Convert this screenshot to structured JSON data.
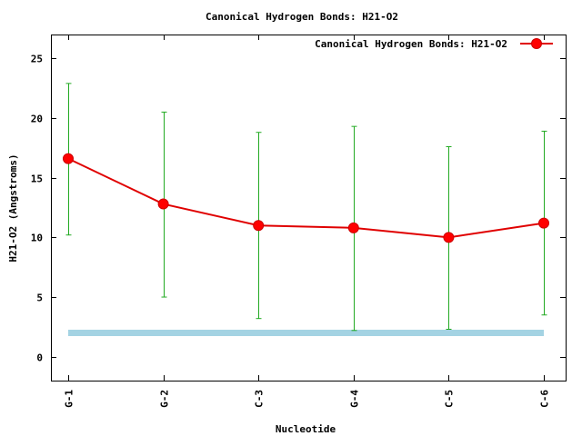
{
  "colors": {
    "line": "#e00000",
    "marker": "#ff0000",
    "errorbar": "#22aa22",
    "reference": "#a4d3e3",
    "axis": "#000000"
  },
  "chart_data": {
    "type": "line",
    "title": "Canonical Hydrogen Bonds: H21-O2",
    "xlabel": "Nucleotide",
    "ylabel": "H21-O2 (Angstroms)",
    "ylim": [
      -2,
      27
    ],
    "yticks": [
      "0",
      "5",
      "10",
      "15",
      "20",
      "25"
    ],
    "grid": false,
    "legend_position": "top-right",
    "categories": [
      "G-1",
      "G-2",
      "C-3",
      "G-4",
      "C-5",
      "C-6"
    ],
    "series": [
      {
        "name": "Canonical Hydrogen Bonds: H21-O2",
        "values": [
          16.6,
          12.8,
          11.0,
          10.8,
          10.0,
          11.2
        ],
        "err_low": [
          10.2,
          5.0,
          3.2,
          2.2,
          2.3,
          3.5
        ],
        "err_high": [
          22.9,
          20.5,
          18.8,
          19.3,
          17.6,
          18.9
        ]
      }
    ],
    "reference_line": {
      "value": 2.0
    }
  }
}
